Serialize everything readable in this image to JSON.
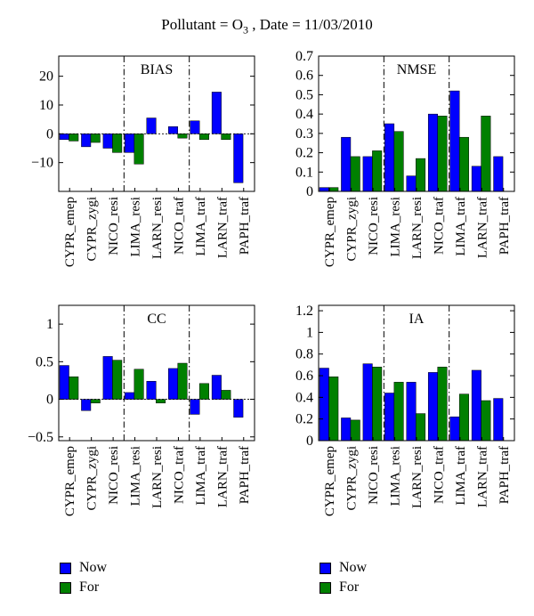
{
  "title": {
    "prefix": "Pollutant = O",
    "sub": "3",
    "suffix": " , Date = 11/03/2010"
  },
  "legend": [
    {
      "name": "Now",
      "color": "#0000ff"
    },
    {
      "name": "For",
      "color": "#008000"
    }
  ],
  "chart_data": [
    {
      "type": "bar",
      "title": "BIAS",
      "categories": [
        "CYPR_emep",
        "CYPR_zygi",
        "NICO_resi",
        "LIMA_resi",
        "LARN_resi",
        "NICO_traf",
        "LIMA_traf",
        "LARN_traf",
        "PAPH_traf"
      ],
      "series": [
        {
          "name": "Now",
          "values": [
            -2,
            -4.5,
            -5,
            -6.5,
            5.5,
            2.5,
            4.5,
            14.5,
            -17
          ]
        },
        {
          "name": "For",
          "values": [
            -2.5,
            -3,
            -6.5,
            -10.5,
            null,
            -1.5,
            -2,
            -2,
            null
          ]
        }
      ],
      "ylim": [
        -20,
        27
      ],
      "yticks": [
        -10,
        0,
        10,
        20
      ],
      "separators_after": [
        2,
        5
      ]
    },
    {
      "type": "bar",
      "title": "NMSE",
      "categories": [
        "CYPR_emep",
        "CYPR_zygi",
        "NICO_resi",
        "LIMA_resi",
        "LARN_resi",
        "NICO_traf",
        "LIMA_traf",
        "LARN_traf",
        "PAPH_traf"
      ],
      "series": [
        {
          "name": "Now",
          "values": [
            0.02,
            0.28,
            0.18,
            0.35,
            0.08,
            0.4,
            0.52,
            0.13,
            0.18
          ]
        },
        {
          "name": "For",
          "values": [
            0.02,
            0.18,
            0.21,
            0.31,
            0.17,
            0.39,
            0.28,
            0.39,
            null
          ]
        }
      ],
      "ylim": [
        0,
        0.7
      ],
      "yticks": [
        0,
        0.1,
        0.2,
        0.3,
        0.4,
        0.5,
        0.6,
        0.7
      ],
      "separators_after": [
        2,
        5
      ]
    },
    {
      "type": "bar",
      "title": "CC",
      "categories": [
        "CYPR_emep",
        "CYPR_zygi",
        "NICO_resi",
        "LIMA_resi",
        "LARN_resi",
        "NICO_traf",
        "LIMA_traf",
        "LARN_traf",
        "PAPH_traf"
      ],
      "series": [
        {
          "name": "Now",
          "values": [
            0.45,
            -0.15,
            0.57,
            0.09,
            0.24,
            0.41,
            -0.2,
            0.32,
            -0.24
          ]
        },
        {
          "name": "For",
          "values": [
            0.3,
            -0.05,
            0.52,
            0.4,
            -0.05,
            0.48,
            0.21,
            0.12,
            null
          ]
        }
      ],
      "ylim": [
        -0.55,
        1.25
      ],
      "yticks": [
        -0.5,
        0,
        0.5,
        1
      ],
      "separators_after": [
        2,
        5
      ]
    },
    {
      "type": "bar",
      "title": "IA",
      "categories": [
        "CYPR_emep",
        "CYPR_zygi",
        "NICO_resi",
        "LIMA_resi",
        "LARN_resi",
        "NICO_traf",
        "LIMA_traf",
        "LARN_traf",
        "PAPH_traf"
      ],
      "series": [
        {
          "name": "Now",
          "values": [
            0.67,
            0.21,
            0.71,
            0.44,
            0.54,
            0.63,
            0.22,
            0.65,
            0.39
          ]
        },
        {
          "name": "For",
          "values": [
            0.59,
            0.19,
            0.68,
            0.54,
            0.25,
            0.68,
            0.43,
            0.37,
            null
          ]
        }
      ],
      "ylim": [
        0,
        1.25
      ],
      "yticks": [
        0,
        0.2,
        0.4,
        0.6,
        0.8,
        1,
        1.2
      ],
      "separators_after": [
        2,
        5
      ]
    }
  ]
}
